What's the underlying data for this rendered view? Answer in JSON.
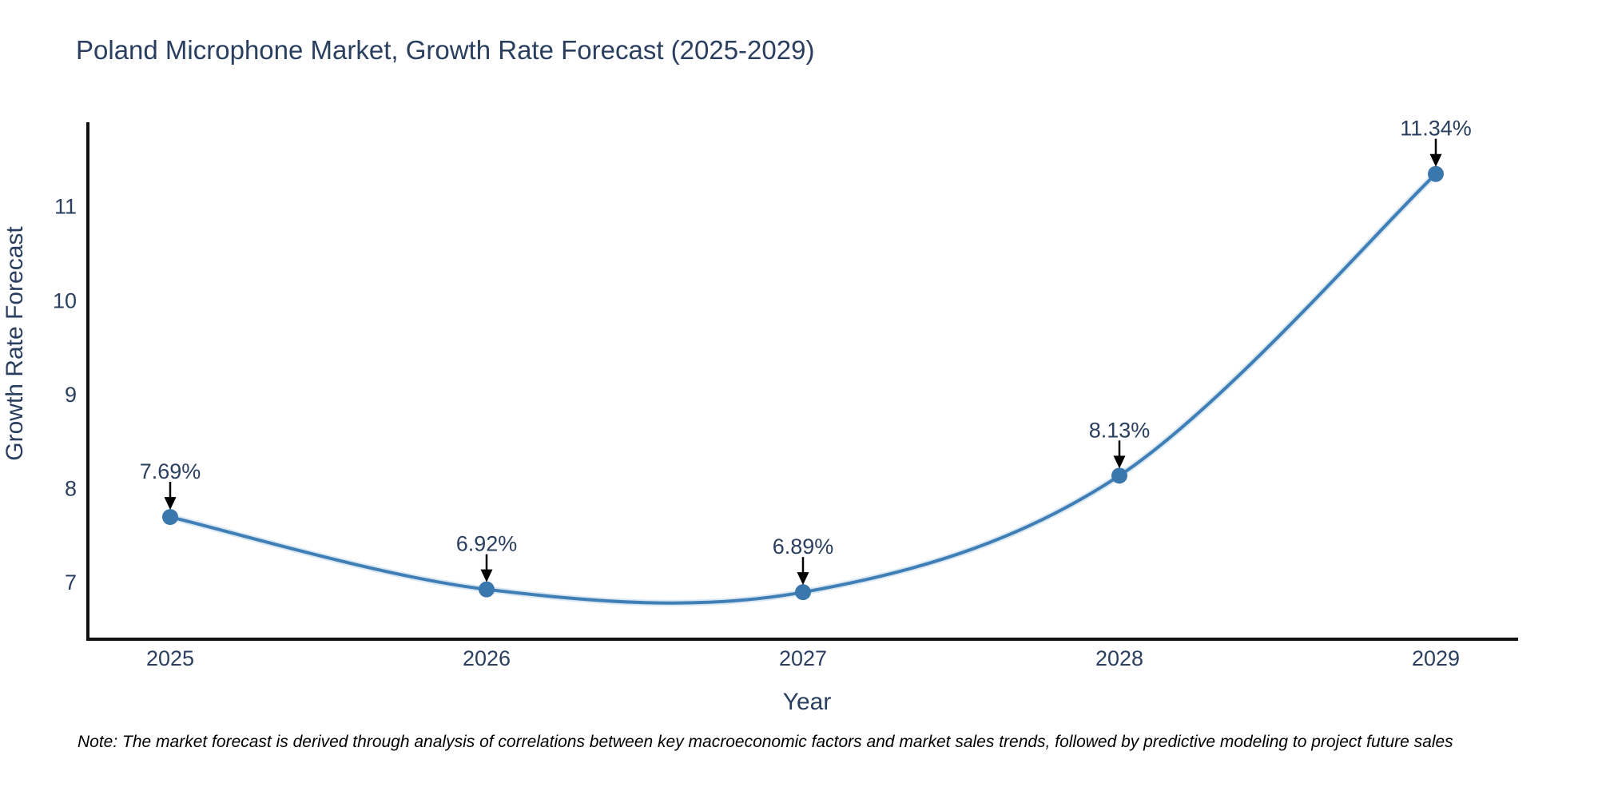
{
  "chart_data": {
    "type": "line",
    "title": "Poland Microphone Market, Growth Rate Forecast (2025-2029)",
    "categories": [
      "2025",
      "2026",
      "2027",
      "2028",
      "2029"
    ],
    "series": [
      {
        "name": "Growth Rate Forecast",
        "values": [
          7.69,
          6.92,
          6.89,
          8.13,
          11.34
        ]
      }
    ],
    "point_labels": [
      "7.69%",
      "6.92%",
      "6.89%",
      "8.13%",
      "11.34%"
    ],
    "xlabel": "Year",
    "ylabel": "Growth Rate Forecast",
    "yticks": [
      7,
      8,
      9,
      10,
      11
    ],
    "ylim": [
      6.39,
      11.89
    ],
    "line_shape": "spline",
    "grid": false,
    "legend_position": "none",
    "colors": {
      "line": "#3f7fb5",
      "line_halo": "#b9d5ea",
      "marker": "#3a77ad",
      "axis_line": "#111111",
      "text": "#2a3f5f",
      "annotation_text": "#2a3f5f",
      "annotation_arrow": "#000000",
      "note_text": "#000000",
      "background": "#ffffff"
    },
    "note": "Note: The market forecast is derived through analysis of correlations between key macroeconomic factors and market sales trends, followed by predictive modeling to project future sales"
  }
}
